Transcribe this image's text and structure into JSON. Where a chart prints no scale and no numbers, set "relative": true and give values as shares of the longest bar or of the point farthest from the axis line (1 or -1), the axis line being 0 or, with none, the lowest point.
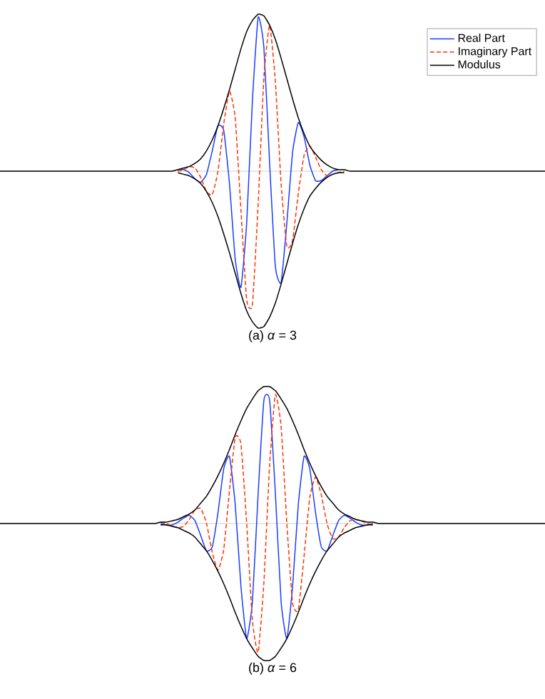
{
  "chart_data": [
    {
      "type": "line",
      "title": "(a) *α* = 3",
      "relative": true,
      "legend": "top right",
      "categories": [
        null,
        null,
        null,
        null,
        null,
        null,
        null,
        null,
        null,
        null,
        null,
        null,
        null,
        null,
        null,
        null,
        null,
        null,
        null,
        null,
        null,
        null,
        null,
        null,
        null,
        null,
        null,
        null,
        null,
        null,
        null,
        null,
        null,
        null,
        null,
        null,
        null,
        null,
        null,
        null,
        null,
        null,
        null,
        null,
        null,
        null,
        null,
        null,
        null,
        null,
        null,
        null,
        null,
        null,
        null,
        null,
        null,
        null,
        null,
        null,
        null,
        null,
        null,
        null,
        null,
        null,
        null,
        null,
        null,
        null,
        null,
        null,
        null,
        null,
        null,
        null,
        null,
        null,
        null,
        null,
        null,
        null,
        null,
        null,
        null,
        null,
        null,
        null,
        null,
        null,
        null,
        null,
        null,
        null,
        null,
        null
      ],
      "series": [
        {
          "name": "Real Part",
          "color": "#1a3cff",
          "line_style": "solid",
          "values": [
            null,
            null,
            null,
            null,
            null,
            null,
            null,
            null,
            null,
            null,
            null,
            null,
            null,
            null,
            null,
            null,
            null,
            null,
            null,
            null,
            null,
            null,
            null,
            null,
            null,
            null,
            null,
            null,
            null,
            null,
            null,
            0.01,
            0.01,
            -0.01,
            -0.05,
            -0.07,
            -0.02,
            0.13,
            0.29,
            0.26,
            -0.08,
            -0.56,
            -0.74,
            -0.33,
            0.45,
            0.98,
            0.79,
            0.05,
            -0.61,
            -0.71,
            -0.33,
            0.12,
            0.31,
            0.22,
            0.04,
            -0.06,
            -0.06,
            -0.03,
            0.0,
            0.01,
            null,
            null,
            null,
            null,
            null,
            null,
            null,
            null,
            null,
            null,
            null,
            null,
            null,
            null,
            null,
            null,
            null,
            null,
            null,
            null,
            null,
            null,
            null,
            null,
            null,
            null,
            null,
            null,
            null,
            null,
            null,
            null,
            null,
            null,
            null,
            null
          ]
        },
        {
          "name": "Imaginary Part",
          "color": "#ff3300",
          "line_style": "dashed",
          "values": [
            null,
            null,
            null,
            null,
            null,
            null,
            null,
            null,
            null,
            null,
            null,
            null,
            null,
            null,
            null,
            null,
            null,
            null,
            null,
            null,
            null,
            null,
            null,
            null,
            null,
            null,
            null,
            null,
            null,
            null,
            null,
            0.0,
            0.01,
            0.03,
            0.02,
            -0.04,
            -0.13,
            -0.15,
            0.0,
            0.3,
            0.51,
            0.34,
            -0.25,
            -0.82,
            -0.85,
            -0.21,
            0.6,
            0.93,
            0.57,
            -0.08,
            -0.48,
            -0.44,
            -0.14,
            0.1,
            0.16,
            0.09,
            0.01,
            -0.03,
            -0.02,
            -0.01,
            0.0,
            null,
            null,
            null,
            null,
            null,
            null,
            null,
            null,
            null,
            null,
            null,
            null,
            null,
            null,
            null,
            null,
            null,
            null,
            null,
            null,
            null,
            null,
            null,
            null,
            null,
            null,
            null,
            null,
            null,
            null,
            null,
            null,
            null,
            null,
            null
          ]
        },
        {
          "name": "Modulus",
          "color": "#000000",
          "line_style": "solid",
          "values": [
            0,
            0,
            0,
            0,
            0,
            0,
            0,
            0,
            0,
            0,
            0,
            0,
            0,
            0,
            0,
            0,
            0,
            0,
            0,
            0,
            0,
            0,
            0,
            0,
            0,
            0,
            0,
            0,
            0,
            0,
            0,
            0.01,
            0.02,
            0.03,
            0.05,
            0.08,
            0.13,
            0.2,
            0.29,
            0.4,
            0.52,
            0.65,
            0.78,
            0.89,
            0.96,
            1.0,
            0.99,
            0.93,
            0.84,
            0.72,
            0.59,
            0.46,
            0.34,
            0.24,
            0.16,
            0.11,
            0.07,
            0.04,
            0.02,
            0.01,
            0.01,
            0,
            0,
            0,
            0,
            0,
            0,
            0,
            0,
            0,
            0,
            0,
            0,
            0,
            0,
            0,
            0,
            0,
            0,
            0,
            0,
            0,
            0,
            0,
            0,
            0,
            0,
            0,
            0,
            0,
            0,
            0,
            0,
            0,
            0,
            0
          ]
        },
        {
          "color": "#000000",
          "line_style": "solid",
          "values": [
            null,
            null,
            null,
            null,
            null,
            null,
            null,
            null,
            null,
            null,
            null,
            null,
            null,
            null,
            null,
            null,
            null,
            null,
            null,
            null,
            null,
            null,
            null,
            null,
            null,
            null,
            null,
            null,
            null,
            null,
            null,
            -0.01,
            -0.02,
            -0.03,
            -0.05,
            -0.08,
            -0.13,
            -0.2,
            -0.29,
            -0.4,
            -0.52,
            -0.65,
            -0.78,
            -0.89,
            -0.96,
            -1.0,
            -0.99,
            -0.93,
            -0.84,
            -0.72,
            -0.59,
            -0.46,
            -0.34,
            -0.24,
            -0.16,
            -0.11,
            -0.07,
            -0.04,
            -0.02,
            -0.01,
            -0.01,
            null,
            null,
            null,
            null,
            null,
            null,
            null,
            null,
            null,
            null,
            null,
            null,
            null,
            null,
            null,
            null,
            null,
            null,
            null,
            null,
            null,
            null,
            null,
            null,
            null,
            null,
            null,
            null,
            null,
            null,
            null,
            null,
            null,
            null,
            null
          ]
        }
      ]
    },
    {
      "type": "line",
      "title": "(b) *α* = 6",
      "relative": true,
      "categories": [
        null,
        null,
        null,
        null,
        null,
        null,
        null,
        null,
        null,
        null,
        null,
        null,
        null,
        null,
        null,
        null,
        null,
        null,
        null,
        null,
        null,
        null,
        null,
        null,
        null,
        null,
        null,
        null,
        null,
        null,
        null,
        null,
        null,
        null,
        null,
        null,
        null,
        null,
        null,
        null,
        null,
        null,
        null,
        null,
        null,
        null,
        null,
        null,
        null,
        null,
        null,
        null,
        null,
        null,
        null,
        null,
        null,
        null,
        null,
        null,
        null,
        null,
        null,
        null,
        null,
        null,
        null,
        null,
        null,
        null,
        null,
        null,
        null,
        null,
        null,
        null,
        null,
        null,
        null,
        null,
        null,
        null,
        null,
        null,
        null,
        null,
        null,
        null,
        null,
        null,
        null,
        null,
        null,
        null,
        null,
        null
      ],
      "series": [
        {
          "color": "#1a3cff",
          "line_style": "solid",
          "values": [
            null,
            null,
            null,
            null,
            null,
            null,
            null,
            null,
            null,
            null,
            null,
            null,
            null,
            null,
            null,
            null,
            null,
            null,
            null,
            null,
            null,
            null,
            null,
            null,
            null,
            null,
            null,
            null,
            0.0,
            -0.01,
            -0.01,
            0.01,
            0.04,
            0.06,
            0.02,
            -0.09,
            -0.2,
            -0.17,
            0.08,
            0.4,
            0.49,
            0.14,
            -0.46,
            -0.84,
            -0.57,
            0.22,
            0.9,
            0.9,
            0.22,
            -0.57,
            -0.84,
            -0.46,
            0.14,
            0.49,
            0.4,
            0.08,
            -0.17,
            -0.2,
            -0.09,
            0.02,
            0.06,
            0.04,
            0.01,
            -0.01,
            -0.01,
            0.0,
            null,
            null,
            null,
            null,
            null,
            null,
            null,
            null,
            null,
            null,
            null,
            null,
            null,
            null,
            null,
            null,
            null,
            null,
            null,
            null,
            null,
            null,
            null,
            null,
            null,
            null,
            null,
            null,
            null,
            null
          ]
        },
        {
          "color": "#ff3300",
          "line_style": "dashed",
          "values": [
            null,
            null,
            null,
            null,
            null,
            null,
            null,
            null,
            null,
            null,
            null,
            null,
            null,
            null,
            null,
            null,
            null,
            null,
            null,
            null,
            null,
            null,
            null,
            null,
            null,
            null,
            null,
            null,
            0.01,
            0.0,
            -0.02,
            -0.03,
            -0.02,
            0.03,
            0.1,
            0.11,
            0.0,
            -0.21,
            -0.34,
            -0.19,
            0.24,
            0.63,
            0.58,
            0.0,
            -0.71,
            -0.94,
            -0.43,
            0.43,
            0.94,
            0.71,
            0.0,
            -0.58,
            -0.63,
            -0.24,
            0.19,
            0.34,
            0.21,
            0.0,
            -0.11,
            -0.1,
            -0.03,
            0.02,
            0.03,
            0.02,
            0.0,
            -0.01,
            null,
            null,
            null,
            null,
            null,
            null,
            null,
            null,
            null,
            null,
            null,
            null,
            null,
            null,
            null,
            null,
            null,
            null,
            null,
            null,
            null,
            null,
            null,
            null,
            null,
            null,
            null,
            null,
            null,
            null
          ]
        },
        {
          "color": "#000000",
          "line_style": "solid",
          "values": [
            0,
            0,
            0,
            0,
            0,
            0,
            0,
            0,
            0,
            0,
            0,
            0,
            0,
            0,
            0,
            0,
            0,
            0,
            0,
            0,
            0,
            0,
            0,
            0,
            0,
            0,
            0,
            0,
            0.01,
            0.01,
            0.02,
            0.03,
            0.05,
            0.07,
            0.1,
            0.15,
            0.2,
            0.27,
            0.35,
            0.44,
            0.54,
            0.65,
            0.75,
            0.84,
            0.91,
            0.97,
            1.0,
            1.0,
            0.97,
            0.91,
            0.84,
            0.75,
            0.65,
            0.54,
            0.44,
            0.35,
            0.27,
            0.2,
            0.15,
            0.1,
            0.07,
            0.05,
            0.03,
            0.02,
            0.01,
            0.01,
            0,
            0,
            0,
            0,
            0,
            0,
            0,
            0,
            0,
            0,
            0,
            0,
            0,
            0,
            0,
            0,
            0,
            0,
            0,
            0,
            0,
            0,
            0,
            0,
            0,
            0,
            0,
            0,
            0,
            0
          ]
        },
        {
          "color": "#000000",
          "line_style": "solid",
          "values": [
            null,
            null,
            null,
            null,
            null,
            null,
            null,
            null,
            null,
            null,
            null,
            null,
            null,
            null,
            null,
            null,
            null,
            null,
            null,
            null,
            null,
            null,
            null,
            null,
            null,
            null,
            null,
            null,
            -0.01,
            -0.01,
            -0.02,
            -0.03,
            -0.05,
            -0.07,
            -0.1,
            -0.15,
            -0.2,
            -0.27,
            -0.35,
            -0.44,
            -0.54,
            -0.65,
            -0.75,
            -0.84,
            -0.91,
            -0.97,
            -1.0,
            -1.0,
            -0.97,
            -0.91,
            -0.84,
            -0.75,
            -0.65,
            -0.54,
            -0.44,
            -0.35,
            -0.27,
            -0.2,
            -0.15,
            -0.1,
            -0.07,
            -0.05,
            -0.03,
            -0.02,
            -0.01,
            -0.01,
            null,
            null,
            null,
            null,
            null,
            null,
            null,
            null,
            null,
            null,
            null,
            null,
            null,
            null,
            null,
            null,
            null,
            null,
            null,
            null,
            null,
            null,
            null,
            null,
            null,
            null,
            null,
            null,
            null,
            null
          ]
        }
      ]
    }
  ]
}
